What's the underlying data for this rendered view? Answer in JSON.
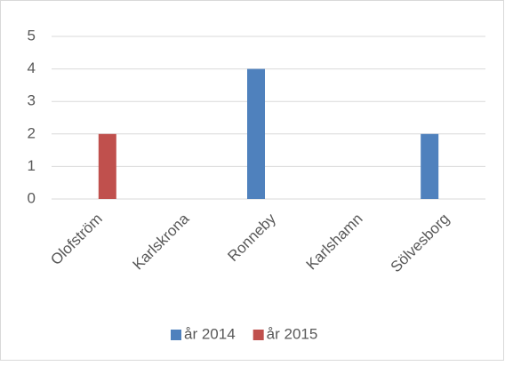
{
  "chart_data": {
    "type": "bar",
    "categories": [
      "Olofström",
      "Karlskrona",
      "Ronneby",
      "Karlshamn",
      "Sölvesborg"
    ],
    "series": [
      {
        "name": "år 2014",
        "color": "#4f81bd",
        "values": [
          0,
          0,
          4,
          0,
          2
        ]
      },
      {
        "name": "år 2015",
        "color": "#c0504d",
        "values": [
          2,
          0,
          0,
          0,
          0
        ]
      }
    ],
    "ylim": [
      0,
      5
    ],
    "yticks": [
      0,
      1,
      2,
      3,
      4,
      5
    ],
    "grid": true,
    "legend": "bottom"
  }
}
